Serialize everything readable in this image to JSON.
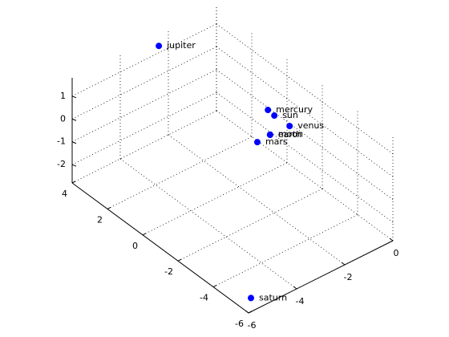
{
  "chart_data": {
    "type": "scatter3d",
    "color": "#0000ff",
    "grid": true,
    "points": [
      {
        "name": "jupiter",
        "x": -2.55,
        "y": 3.79,
        "z": 1.5
      },
      {
        "name": "mercury",
        "x": -1.08,
        "y": -0.39,
        "z": 0.3
      },
      {
        "name": "sun",
        "x": -0.88,
        "y": -0.48,
        "z": 0
      },
      {
        "name": "venus",
        "x": -0.7,
        "y": -1.1,
        "z": -0.2
      },
      {
        "name": "earth",
        "x": -1.25,
        "y": -0.74,
        "z": -0.5
      },
      {
        "name": "moon",
        "x": -1.24,
        "y": -0.73,
        "z": -0.5
      },
      {
        "name": "mars",
        "x": -1.58,
        "y": -0.47,
        "z": -0.8
      },
      {
        "name": "saturn",
        "x": -5.9,
        "y": -6.0,
        "z": -2.2
      }
    ],
    "xlim": [
      -6,
      0
    ],
    "ylim": [
      -6,
      4
    ],
    "zlim": [
      -2.8,
      1.8
    ],
    "xticks": [
      -6,
      -4,
      -2,
      0
    ],
    "yticks": [
      -6,
      -4,
      -2,
      0,
      2,
      4
    ],
    "zticks": [
      -2,
      -1,
      0,
      1
    ]
  }
}
